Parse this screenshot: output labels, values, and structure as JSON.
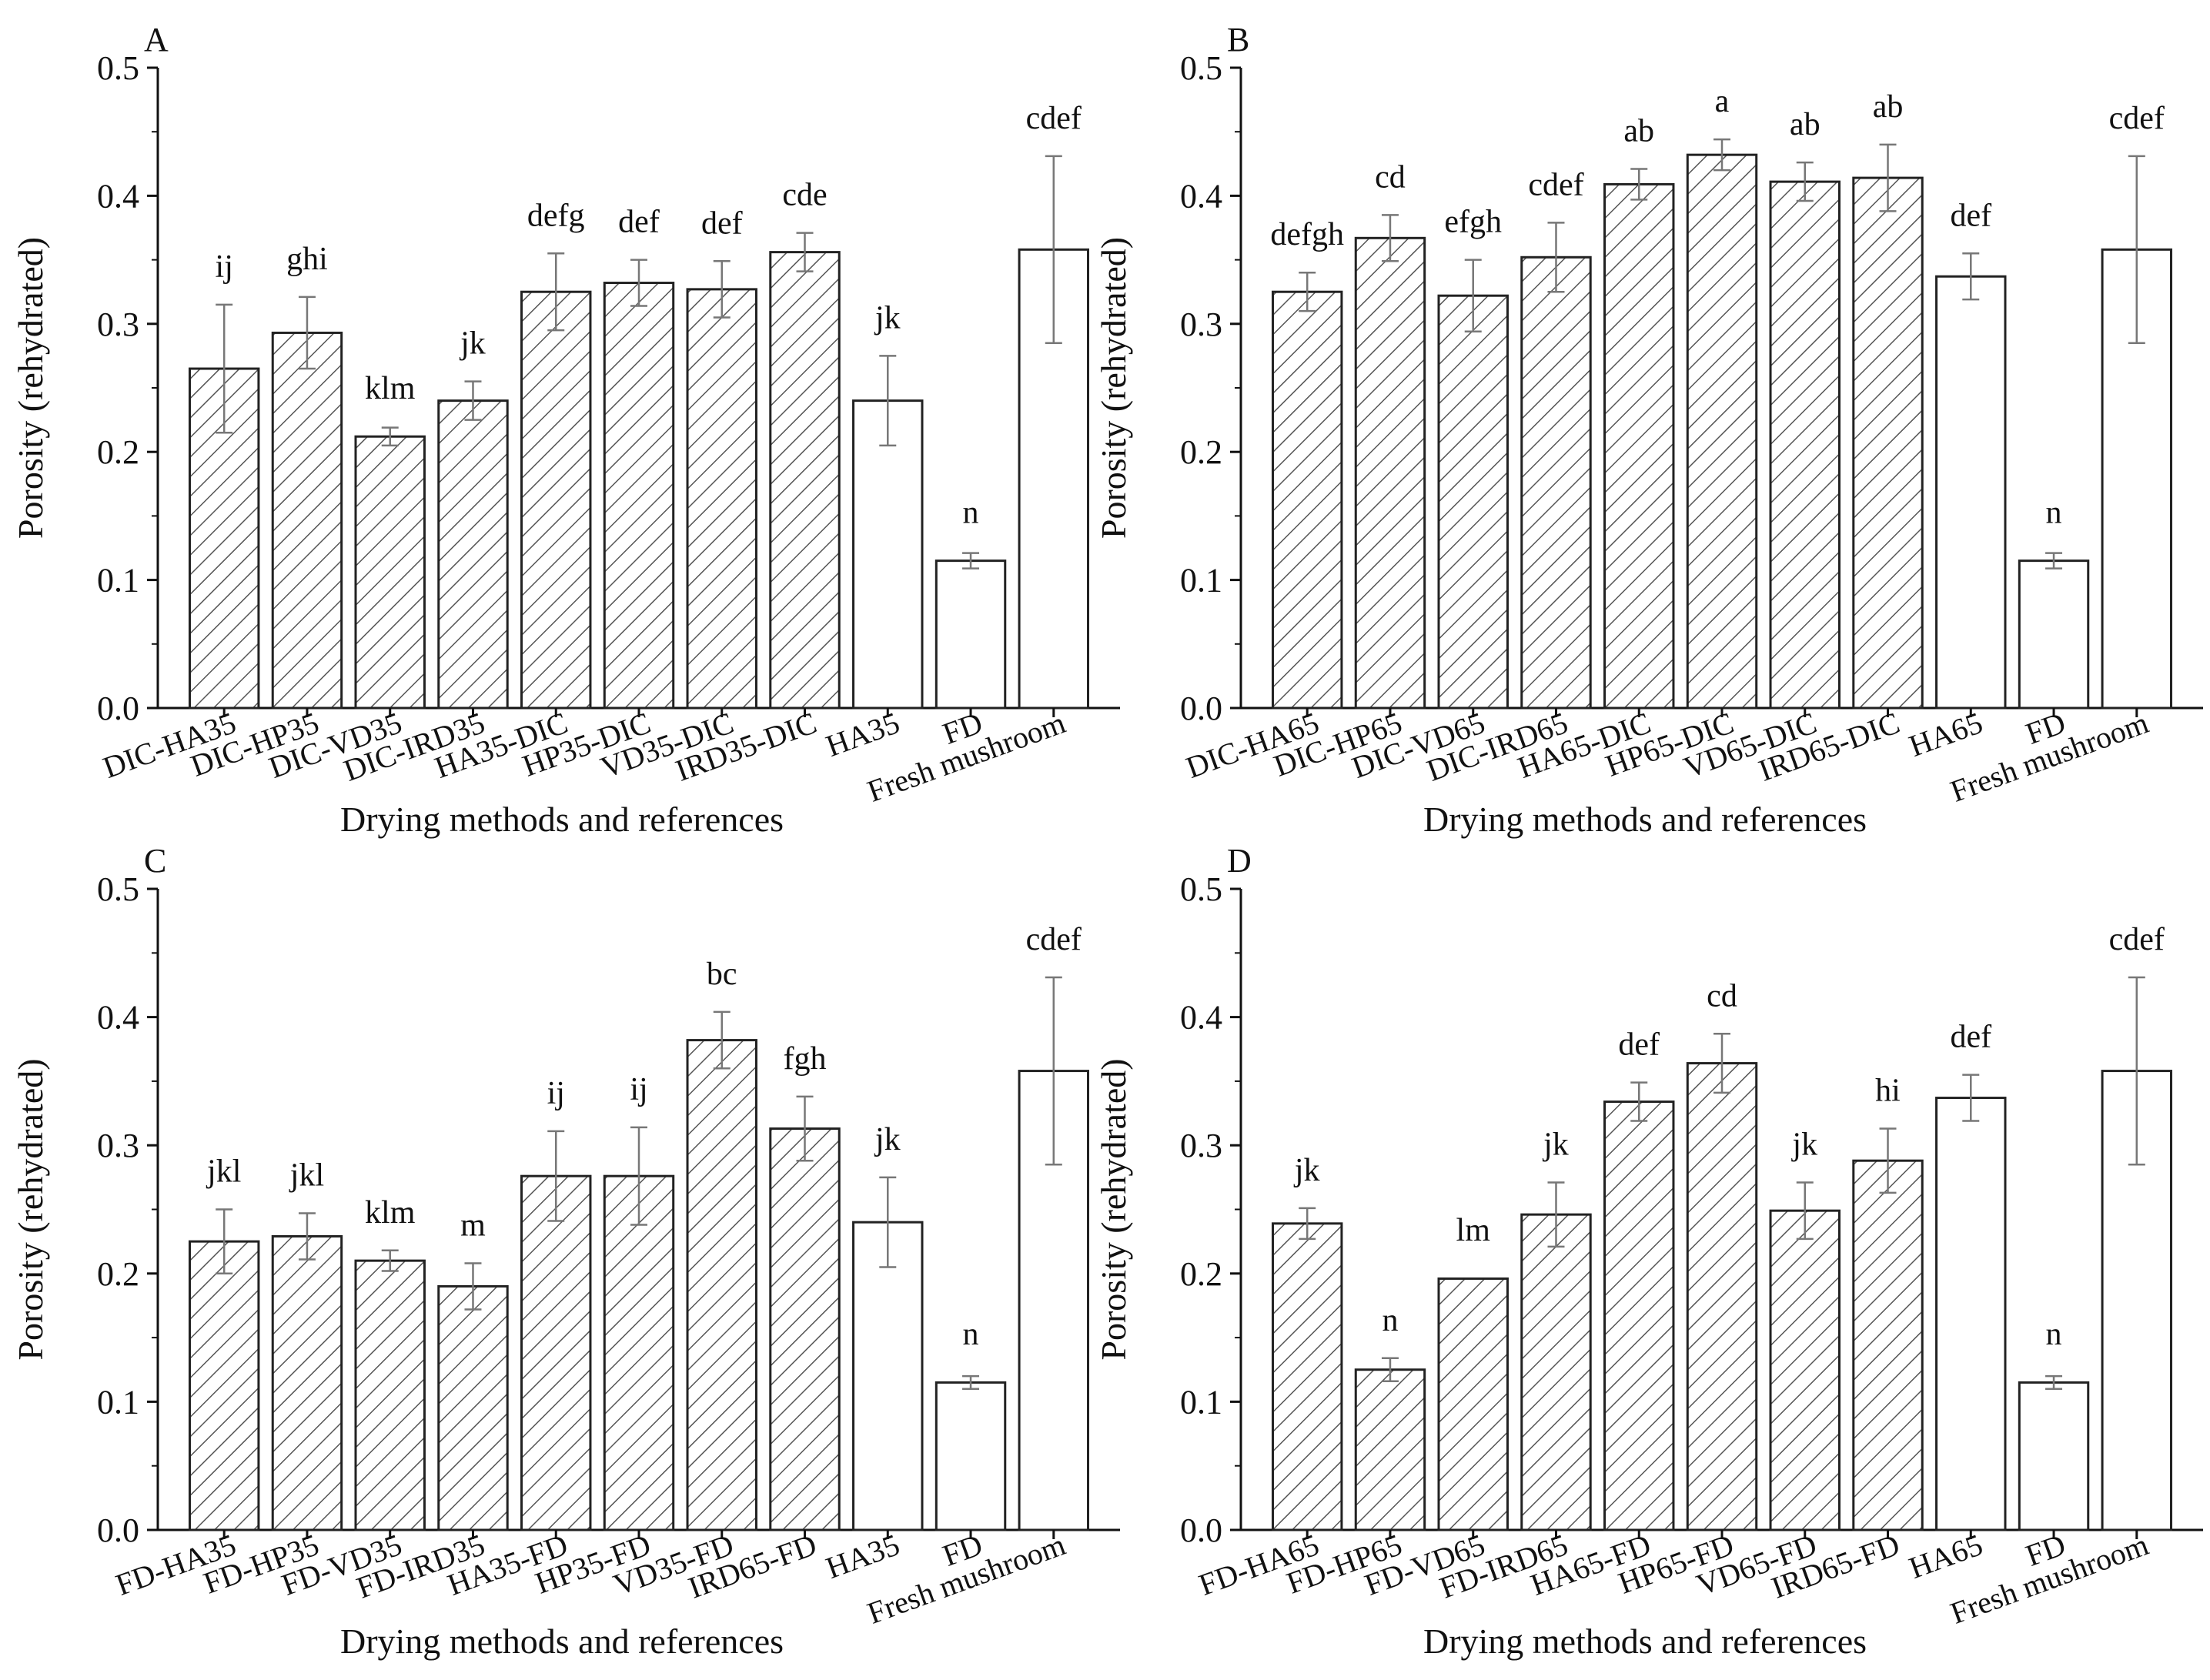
{
  "colors": {
    "axis": "#111111",
    "bar_edge": "#222222",
    "hatch": "#555555",
    "error_bar": "#777777",
    "reference_fill": "#ffffff"
  },
  "chart_data": [
    {
      "panel": "A",
      "type": "bar",
      "ylabel": "Porosity (rehydrated)",
      "xlabel": "Drying methods and references",
      "ylim": [
        0,
        0.5
      ],
      "yticks": [
        "0.0",
        "0.1",
        "0.2",
        "0.3",
        "0.4",
        "0.5"
      ],
      "categories": [
        "DIC-HA35",
        "DIC-HP35",
        "DIC-VD35",
        "DIC-IRD35",
        "HA35-DIC",
        "HP35-DIC",
        "VD35-DIC",
        "IRD35-DIC",
        "HA35",
        "FD",
        "Fresh mushroom"
      ],
      "values": [
        0.265,
        0.293,
        0.212,
        0.24,
        0.325,
        0.332,
        0.327,
        0.356,
        0.24,
        0.115,
        0.358
      ],
      "errors": [
        0.05,
        0.028,
        0.007,
        0.015,
        0.03,
        0.018,
        0.022,
        0.015,
        0.035,
        0.006,
        0.073
      ],
      "hatched": [
        true,
        true,
        true,
        true,
        true,
        true,
        true,
        true,
        false,
        false,
        false
      ],
      "letters": [
        "ij",
        "ghi",
        "klm",
        "jk",
        "defg",
        "def",
        "def",
        "cde",
        "jk",
        "n",
        "cdef"
      ]
    },
    {
      "panel": "B",
      "type": "bar",
      "ylabel": "Porosity (rehydrated)",
      "xlabel": "Drying methods and references",
      "ylim": [
        0,
        0.5
      ],
      "yticks": [
        "0.0",
        "0.1",
        "0.2",
        "0.3",
        "0.4",
        "0.5"
      ],
      "categories": [
        "DIC-HA65",
        "DIC-HP65",
        "DIC-VD65",
        "DIC-IRD65",
        "HA65-DIC",
        "HP65-DIC",
        "VD65-DIC",
        "IRD65-DIC",
        "HA65",
        "FD",
        "Fresh mushroom"
      ],
      "values": [
        0.325,
        0.367,
        0.322,
        0.352,
        0.409,
        0.432,
        0.411,
        0.414,
        0.337,
        0.115,
        0.358
      ],
      "errors": [
        0.015,
        0.018,
        0.028,
        0.027,
        0.012,
        0.012,
        0.015,
        0.026,
        0.018,
        0.006,
        0.073
      ],
      "hatched": [
        true,
        true,
        true,
        true,
        true,
        true,
        true,
        true,
        false,
        false,
        false
      ],
      "letters": [
        "defgh",
        "cd",
        "efgh",
        "cdef",
        "ab",
        "a",
        "ab",
        "ab",
        "def",
        "n",
        "cdef"
      ]
    },
    {
      "panel": "C",
      "type": "bar",
      "ylabel": "Porosity (rehydrated)",
      "xlabel": "Drying methods and references",
      "ylim": [
        0,
        0.5
      ],
      "yticks": [
        "0.0",
        "0.1",
        "0.2",
        "0.3",
        "0.4",
        "0.5"
      ],
      "categories": [
        "FD-HA35",
        "FD-HP35",
        "FD-VD35",
        "FD-IRD35",
        "HA35-FD",
        "HP35-FD",
        "VD35-FD",
        "IRD65-FD",
        "HA35",
        "FD",
        "Fresh mushroom"
      ],
      "values": [
        0.225,
        0.229,
        0.21,
        0.19,
        0.276,
        0.276,
        0.382,
        0.313,
        0.24,
        0.115,
        0.358
      ],
      "errors": [
        0.025,
        0.018,
        0.008,
        0.018,
        0.035,
        0.038,
        0.022,
        0.025,
        0.035,
        0.005,
        0.073
      ],
      "hatched": [
        true,
        true,
        true,
        true,
        true,
        true,
        true,
        true,
        false,
        false,
        false
      ],
      "letters": [
        "jkl",
        "jkl",
        "klm",
        "m",
        "ij",
        "ij",
        "bc",
        "fgh",
        "jk",
        "n",
        "cdef"
      ]
    },
    {
      "panel": "D",
      "type": "bar",
      "ylabel": "Porosity (rehydrated)",
      "xlabel": "Drying methods and references",
      "ylim": [
        0,
        0.5
      ],
      "yticks": [
        "0.0",
        "0.1",
        "0.2",
        "0.3",
        "0.4",
        "0.5"
      ],
      "categories": [
        "FD-HA65",
        "FD-HP65",
        "FD-VD65",
        "FD-IRD65",
        "HA65-FD",
        "HP65-FD",
        "VD65-FD",
        "IRD65-FD",
        "HA65",
        "FD",
        "Fresh mushroom"
      ],
      "values": [
        0.239,
        0.125,
        0.196,
        0.246,
        0.334,
        0.364,
        0.249,
        0.288,
        0.337,
        0.115,
        0.358
      ],
      "errors": [
        0.012,
        0.009,
        0.0,
        0.025,
        0.015,
        0.023,
        0.022,
        0.025,
        0.018,
        0.005,
        0.073
      ],
      "hatched": [
        true,
        true,
        true,
        true,
        true,
        true,
        true,
        true,
        false,
        false,
        false
      ],
      "letters": [
        "jk",
        "n",
        "lm",
        "jk",
        "def",
        "cd",
        "jk",
        "hi",
        "def",
        "n",
        "cdef"
      ]
    }
  ]
}
